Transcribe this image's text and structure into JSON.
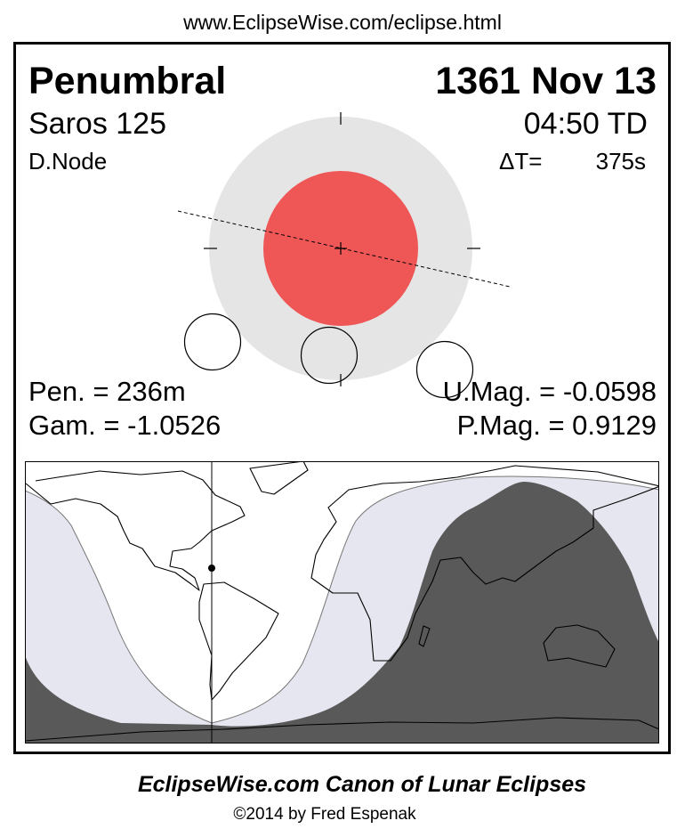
{
  "header": {
    "url": "www.EclipseWise.com/eclipse.html"
  },
  "eclipse": {
    "type": "Penumbral",
    "date": "1361 Nov 13",
    "saros": "Saros 125",
    "time": "04:50 TD",
    "node": "D.Node",
    "delta_t_label": "ΔT=",
    "delta_t_value": "375s",
    "pen_duration": "Pen. = 236m",
    "gamma": "Gam. = -1.0526",
    "umbral_mag": "U.Mag. = -0.0598",
    "penumbral_mag": "P.Mag. = 0.9129"
  },
  "colors": {
    "penumbra": "#e5e5e5",
    "umbra": "#ef5656",
    "map_penumbral_visibility": "#e6e6f0",
    "map_not_visible": "#595959"
  },
  "footer": {
    "title": "EclipseWise.com Canon of Lunar Eclipses",
    "copyright": "©2014 by Fred Espenak"
  }
}
